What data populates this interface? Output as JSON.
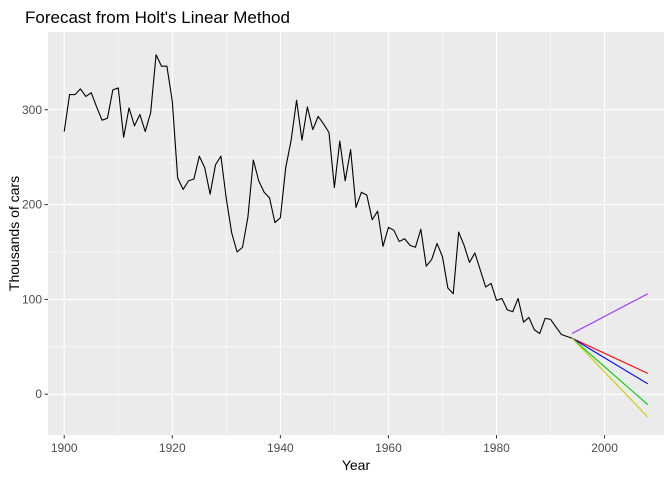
{
  "chart_data": {
    "type": "line",
    "title": "Forecast from Holt's Linear Method",
    "xlabel": "Year",
    "ylabel": "Thousands of cars",
    "xlim": [
      1897,
      2011
    ],
    "ylim": [
      -43,
      382
    ],
    "x_ticks": [
      1900,
      1920,
      1940,
      1960,
      1980,
      2000
    ],
    "y_ticks": [
      0,
      100,
      200,
      300
    ],
    "x_tick_labels": [
      "1900",
      "1920",
      "1940",
      "1960",
      "1980",
      "2000"
    ],
    "y_tick_labels": [
      "0",
      "100",
      "200",
      "300"
    ],
    "grid": true,
    "panel_background": "#EBEBEB",
    "grid_color": "#FFFFFF",
    "series": [
      {
        "color": "#000000",
        "x": [
          1900,
          1901,
          1902,
          1903,
          1904,
          1905,
          1906,
          1907,
          1908,
          1909,
          1910,
          1911,
          1912,
          1913,
          1914,
          1915,
          1916,
          1917,
          1918,
          1919,
          1920,
          1921,
          1922,
          1923,
          1924,
          1925,
          1926,
          1927,
          1928,
          1929,
          1930,
          1931,
          1932,
          1933,
          1934,
          1935,
          1936,
          1937,
          1938,
          1939,
          1940,
          1941,
          1942,
          1943,
          1944,
          1945,
          1946,
          1947,
          1948,
          1949,
          1950,
          1951,
          1952,
          1953,
          1954,
          1955,
          1956,
          1957,
          1958,
          1959,
          1960,
          1961,
          1962,
          1963,
          1964,
          1965,
          1966,
          1967,
          1968,
          1969,
          1970,
          1971,
          1972,
          1973,
          1974,
          1975,
          1976,
          1977,
          1978,
          1979,
          1980,
          1981,
          1982,
          1983,
          1984,
          1985,
          1986,
          1987,
          1988,
          1989,
          1990,
          1991,
          1992,
          1993,
          1994
        ],
        "y": [
          277,
          316,
          316,
          322,
          314,
          318,
          303,
          289,
          291,
          321,
          323,
          271,
          302,
          283,
          295,
          277,
          297,
          358,
          346,
          346,
          309,
          228,
          216,
          225,
          227,
          251,
          239,
          211,
          242,
          251,
          206,
          170,
          150,
          155,
          187,
          247,
          225,
          213,
          207,
          181,
          186,
          239,
          268,
          310,
          268,
          303,
          279,
          293,
          285,
          276,
          218,
          267,
          225,
          258,
          197,
          213,
          210,
          184,
          193,
          156,
          176,
          173,
          161,
          164,
          157,
          155,
          174,
          135,
          142,
          159,
          145,
          112,
          106,
          171,
          157,
          139,
          149,
          131,
          113,
          117,
          99,
          101,
          89,
          87,
          101,
          76,
          81,
          68,
          64,
          80,
          79,
          71,
          63,
          61,
          59
        ]
      },
      {
        "color": "#FF0000",
        "x": [
          1994,
          2008
        ],
        "y": [
          59,
          22
        ]
      },
      {
        "color": "#0000FF",
        "x": [
          1994,
          2008
        ],
        "y": [
          59,
          11
        ]
      },
      {
        "color": "#00CC00",
        "x": [
          1994,
          2008
        ],
        "y": [
          59,
          -11
        ]
      },
      {
        "color": "#CCCC00",
        "x": [
          1994,
          2008
        ],
        "y": [
          59,
          -24
        ]
      },
      {
        "color": "#9933FF",
        "x": [
          1994,
          2008
        ],
        "y": [
          64,
          106
        ]
      }
    ]
  }
}
